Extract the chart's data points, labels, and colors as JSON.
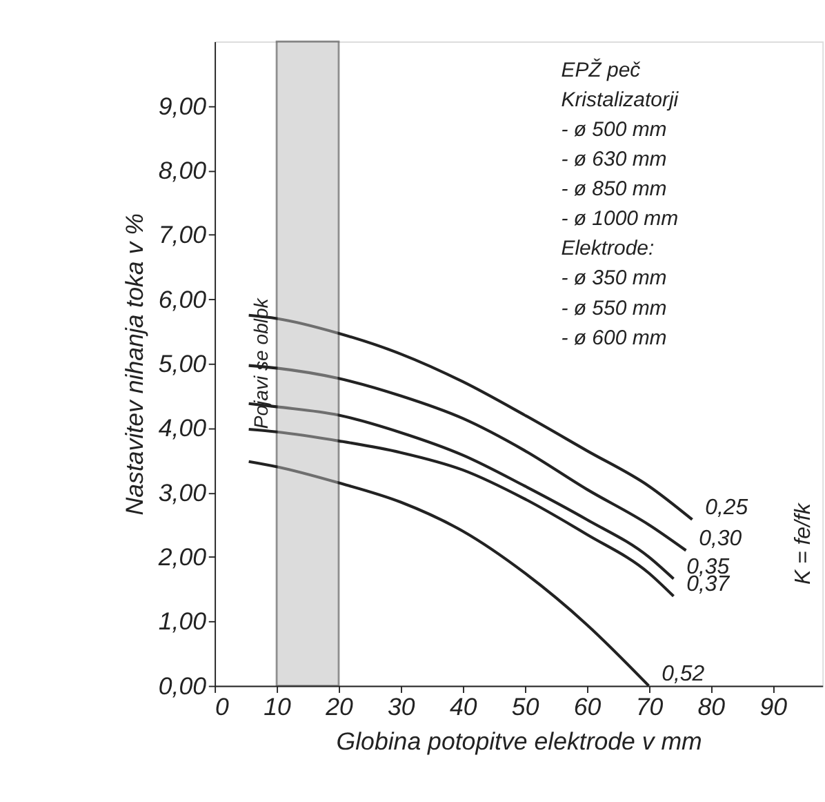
{
  "chart_data": {
    "type": "line",
    "xlabel": "Globina potopitve elektrode v mm",
    "ylabel": "Nastavitev nihanja toka v %",
    "xlim": [
      0,
      98
    ],
    "ylim": [
      0,
      10
    ],
    "xticks": [
      0,
      10,
      20,
      30,
      40,
      50,
      60,
      70,
      80,
      90
    ],
    "yticks": [
      {
        "value": 0,
        "label": "0,00"
      },
      {
        "value": 1,
        "label": "1,00"
      },
      {
        "value": 2,
        "label": "2,00"
      },
      {
        "value": 3,
        "label": "3,00"
      },
      {
        "value": 4,
        "label": "4,00"
      },
      {
        "value": 5,
        "label": "5,00"
      },
      {
        "value": 6,
        "label": "6,00"
      },
      {
        "value": 7,
        "label": "7,00"
      },
      {
        "value": 8,
        "label": "8,00"
      },
      {
        "value": 9,
        "label": "9,00"
      }
    ],
    "grid": false,
    "legend": false,
    "marker": "none",
    "line_style": "solid",
    "series": [
      {
        "name": "0,25",
        "color": "#222222",
        "x": [
          5.5,
          10,
          20,
          30,
          40,
          50,
          60,
          70,
          77
        ],
        "values": [
          5.75,
          5.7,
          5.47,
          5.15,
          4.72,
          4.2,
          3.65,
          3.1,
          2.58
        ]
      },
      {
        "name": "0,30",
        "color": "#222222",
        "x": [
          5.5,
          10,
          20,
          30,
          40,
          50,
          60,
          70,
          76
        ],
        "values": [
          4.97,
          4.93,
          4.77,
          4.5,
          4.15,
          3.65,
          3.05,
          2.5,
          2.1
        ]
      },
      {
        "name": "0,35",
        "color": "#222222",
        "x": [
          5.5,
          10,
          20,
          30,
          40,
          50,
          60,
          70,
          74
        ],
        "values": [
          4.38,
          4.33,
          4.2,
          3.93,
          3.58,
          3.1,
          2.58,
          2.0,
          1.66
        ]
      },
      {
        "name": "0,37",
        "color": "#222222",
        "x": [
          5.5,
          10,
          20,
          30,
          40,
          50,
          60,
          70,
          74
        ],
        "values": [
          3.98,
          3.94,
          3.8,
          3.62,
          3.35,
          2.9,
          2.35,
          1.75,
          1.39
        ]
      },
      {
        "name": "0,52",
        "color": "#222222",
        "x": [
          5.5,
          10,
          20,
          30,
          40,
          50,
          60,
          70
        ],
        "values": [
          3.48,
          3.4,
          3.15,
          2.85,
          2.4,
          1.75,
          0.95,
          0
        ]
      }
    ],
    "bands": [
      {
        "axis": "x",
        "from": 10,
        "to": 20,
        "label": "Pojavi se oblok",
        "color": "#bbbbbb"
      }
    ],
    "annotations": [
      "EPŽ peč",
      "Kristalizatorji",
      "- ø 500 mm",
      "- ø 630 mm",
      "- ø 850 mm",
      "- ø 1000 mm",
      "Elektrode:",
      "- ø 350 mm",
      "- ø 550 mm",
      "- ø 600 mm",
      "K = fe/fk"
    ]
  }
}
